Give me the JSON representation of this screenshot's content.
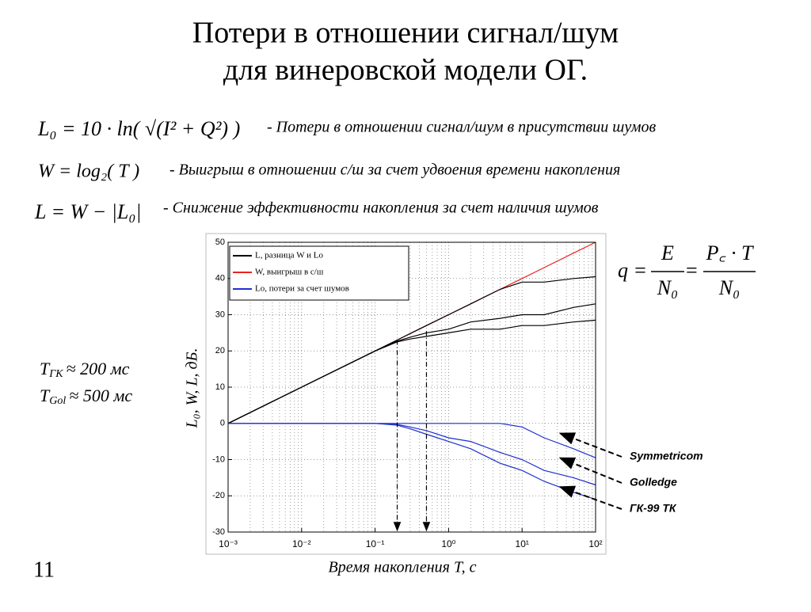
{
  "title": [
    "Потери в отношении сигнал/шум",
    "для винеровской модели ОГ."
  ],
  "formulas": [
    {
      "formula": "L₀ = 10 · ln( √(I² + Q²) )",
      "desc": "- Потери в отношении сигнал/шум в присутствии шумов"
    },
    {
      "formula": "W = log₂( T )",
      "desc": "- Выигрыш в отношении с/ш за счет удвоения времени накопления"
    },
    {
      "formula": "L = W − |L₀|",
      "desc": "- Снижение эффективности накопления за счет наличия шумов"
    }
  ],
  "q_formula": {
    "lhs": "q =",
    "num1": "E",
    "den1": "N₀",
    "eq": "=",
    "num2": "P꜀ · T",
    "den2": "N₀"
  },
  "times": [
    {
      "sym": "T",
      "sub": "ГК",
      "rest": "≈ 200 мс"
    },
    {
      "sym": "T",
      "sub": "Gol",
      "rest": "≈ 500 мс"
    }
  ],
  "page_number": "11",
  "chart_data": {
    "type": "line",
    "log_x": true,
    "grid": true,
    "x_label": "Время накопления T, с",
    "y_label": "L₀, W, L, дБ.",
    "xlim": [
      0.001,
      100
    ],
    "ylim": [
      -30,
      50
    ],
    "xticks": [
      {
        "value": 0.001,
        "label": "10⁻³"
      },
      {
        "value": 0.01,
        "label": "10⁻²"
      },
      {
        "value": 0.1,
        "label": "10⁻¹"
      },
      {
        "value": 1,
        "label": "10⁰"
      },
      {
        "value": 10,
        "label": "10¹"
      },
      {
        "value": 100,
        "label": "10²"
      }
    ],
    "yticks": [
      -30,
      -20,
      -10,
      0,
      10,
      20,
      30,
      40,
      50
    ],
    "x": [
      0.001,
      0.01,
      0.1,
      0.2,
      0.3,
      0.5,
      1,
      2,
      5,
      10,
      20,
      50,
      100
    ],
    "series": [
      {
        "name": "W, выигрыш в с/ш",
        "color": "#e8231f",
        "values": [
          0,
          10,
          20,
          23,
          24.8,
          27,
          30,
          33,
          37,
          40,
          43,
          47,
          50
        ]
      },
      {
        "name": "L, разница W и Lo",
        "color": "#000000",
        "values": [
          0,
          10,
          20,
          23,
          24.8,
          27,
          30,
          33,
          37,
          39,
          39,
          40,
          40.5
        ]
      },
      {
        "color": "#000000",
        "values": [
          0,
          10,
          20,
          22.7,
          23.8,
          25,
          26,
          28,
          29,
          30,
          30,
          32,
          33
        ]
      },
      {
        "color": "#000000",
        "values": [
          0,
          10,
          20,
          22.5,
          23.3,
          24,
          25,
          26,
          26,
          27,
          27,
          28,
          28.5
        ]
      },
      {
        "name": "Lo, потери за счет шумов",
        "color": "#1f2fd0",
        "values": [
          0,
          0,
          0,
          0,
          0,
          0,
          0,
          0,
          0,
          -1,
          -4,
          -7,
          -9.5
        ]
      },
      {
        "color": "#1f2fd0",
        "values": [
          0,
          0,
          0,
          -0.3,
          -1,
          -2,
          -4,
          -5,
          -8,
          -10,
          -13,
          -15,
          -17
        ]
      },
      {
        "color": "#1f2fd0",
        "values": [
          0,
          0,
          0,
          -0.5,
          -1.5,
          -3,
          -5,
          -7,
          -11,
          -13,
          -16,
          -19,
          -21
        ]
      }
    ],
    "markers_x": [
      0.2,
      0.5
    ],
    "annotations": [
      "Symmetricom",
      "Golledge",
      "ГК-99 ТК"
    ]
  }
}
